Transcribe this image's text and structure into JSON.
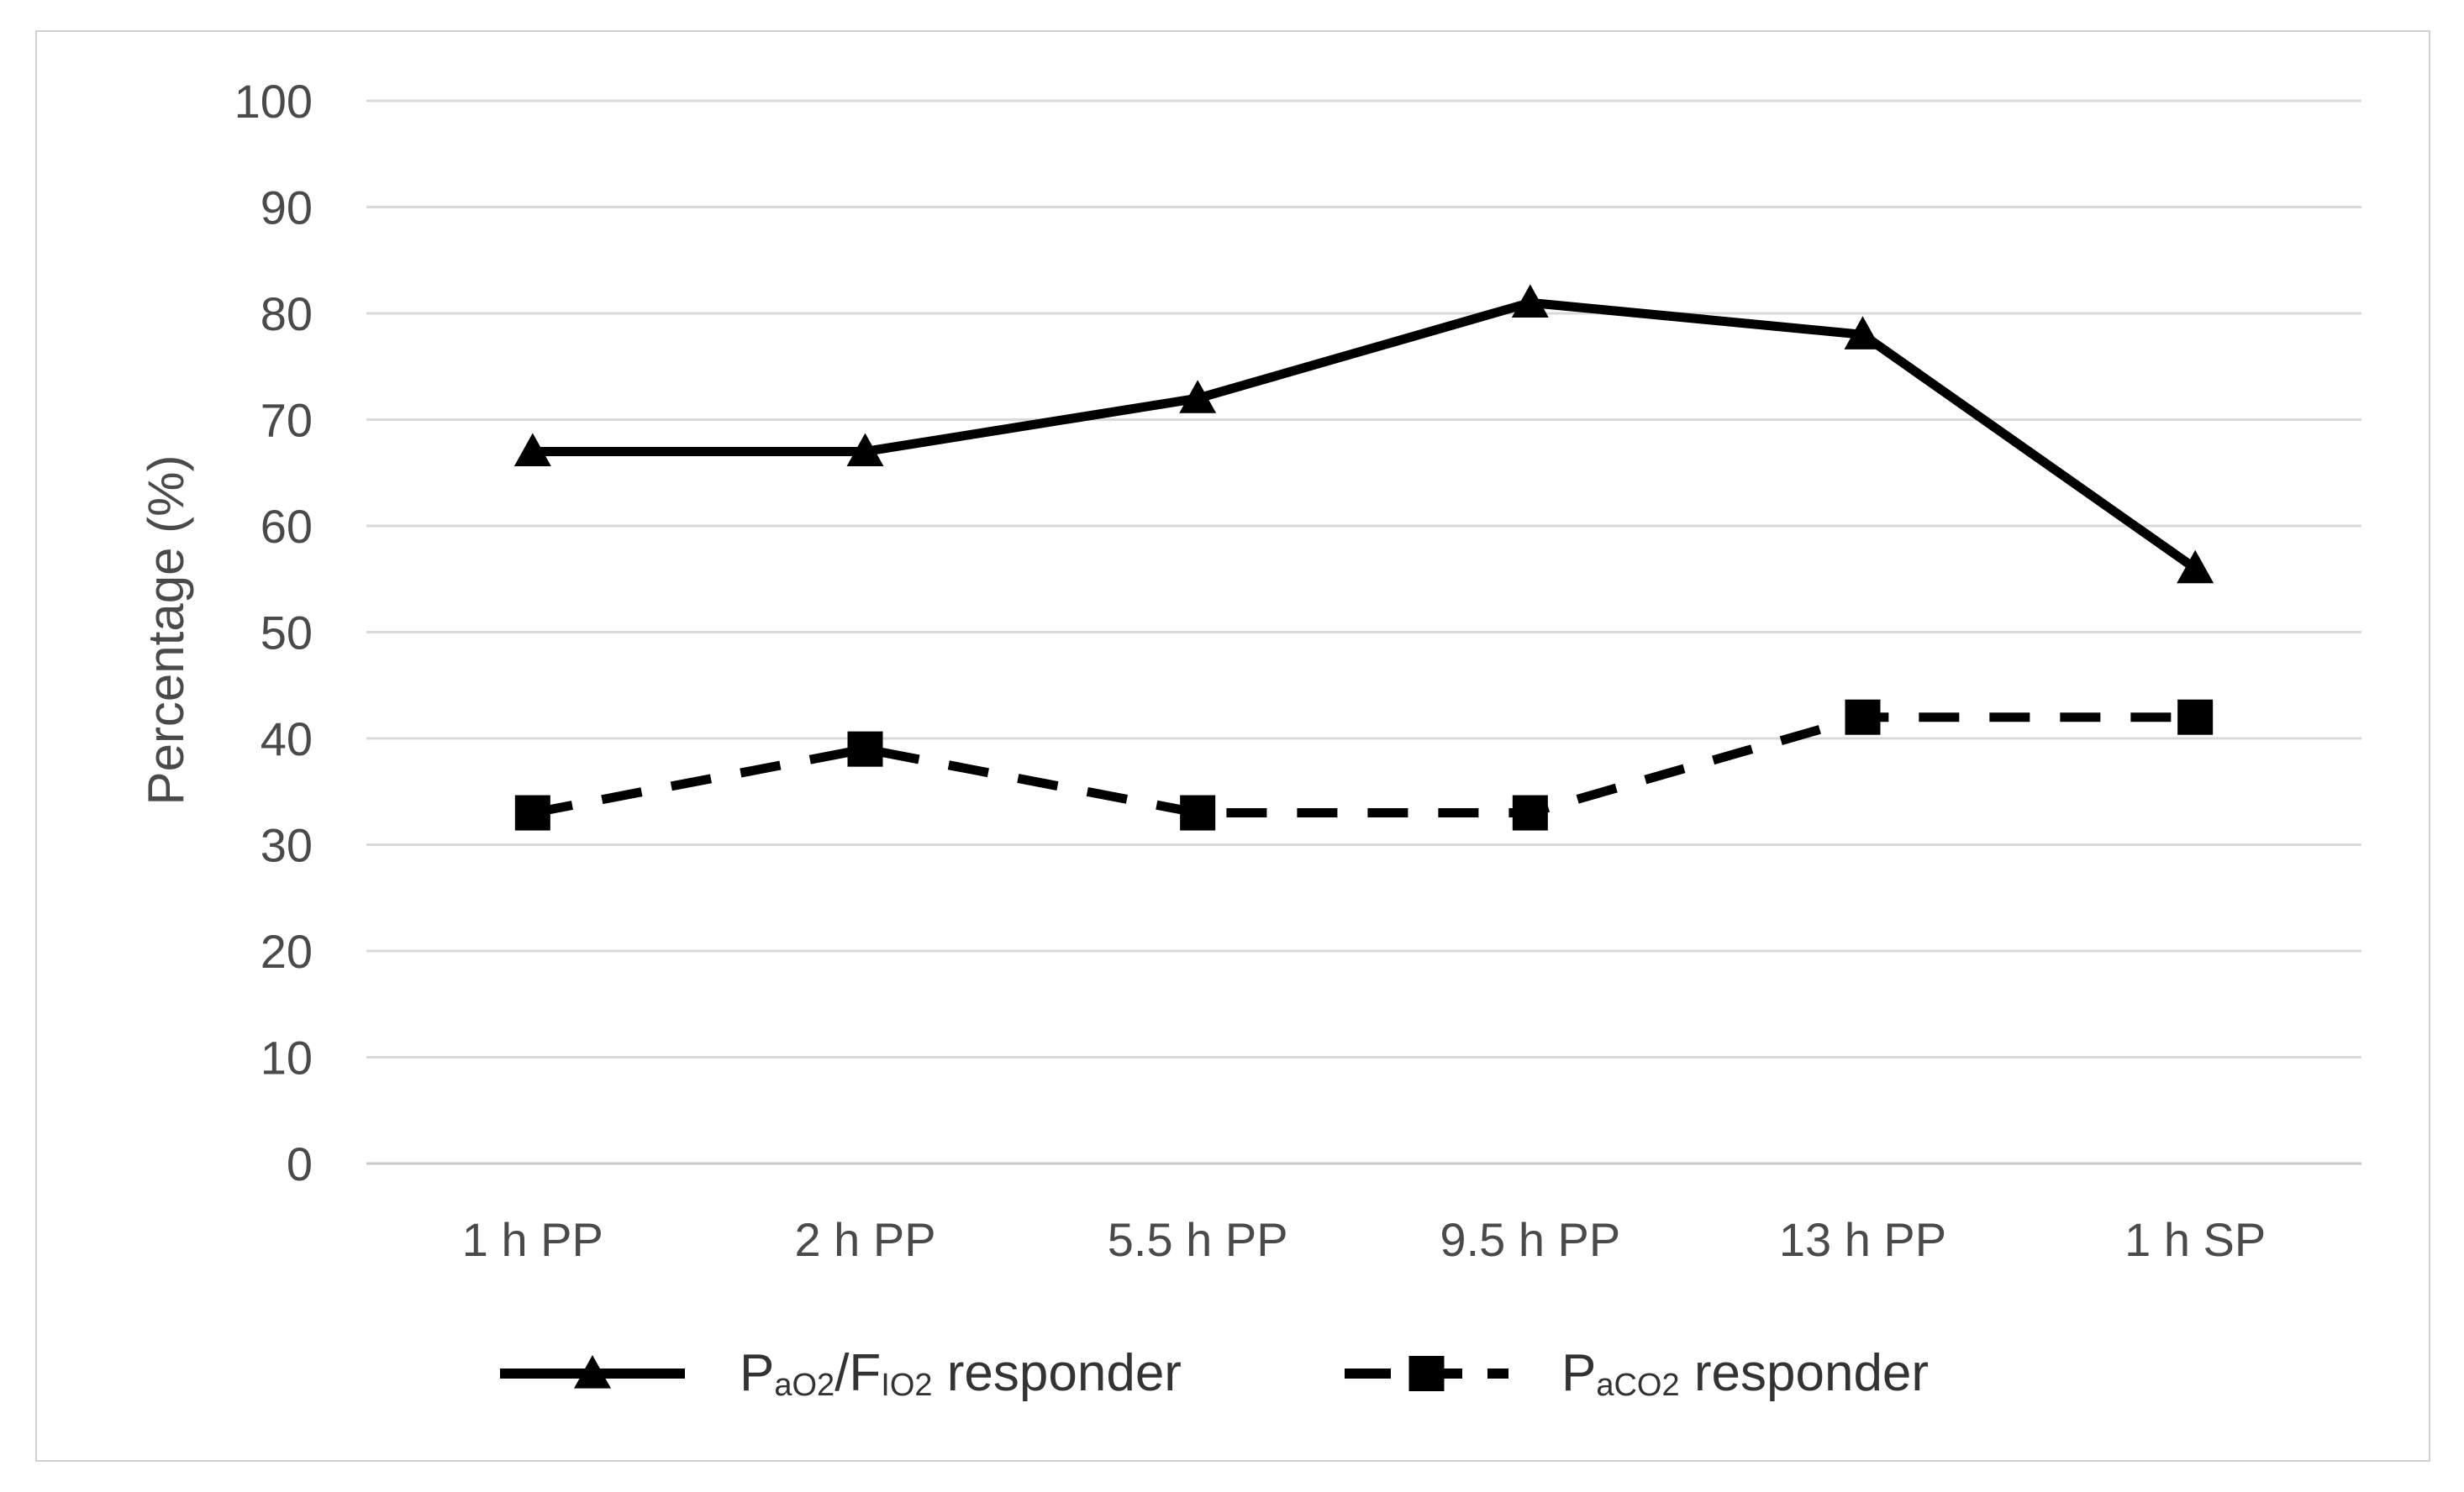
{
  "chart_data": {
    "type": "line",
    "categories": [
      "1 h PP",
      "2 h PP",
      "5.5 h PP",
      "9.5 h PP",
      "13 h PP",
      "1 h SP"
    ],
    "series": [
      {
        "name_parts": [
          "P",
          "aO2",
          "/F",
          "IO2",
          " responder"
        ],
        "values": [
          67,
          67,
          72,
          81,
          78,
          56
        ],
        "line_style": "solid",
        "marker": "triangle",
        "color": "#000000"
      },
      {
        "name_parts": [
          "P",
          "aCO2",
          " responder"
        ],
        "values": [
          33,
          39,
          33,
          33,
          42,
          42
        ],
        "line_style": "dashed",
        "marker": "square",
        "color": "#000000"
      }
    ],
    "ylabel": "Percentage (%)",
    "xlabel": "",
    "ylim": [
      0,
      100
    ],
    "yticks": [
      "0",
      "10",
      "20",
      "30",
      "40",
      "50",
      "60",
      "70",
      "80",
      "90",
      "100"
    ],
    "grid": true,
    "grid_color": "#d9d9d9",
    "legend_position": "bottom"
  }
}
